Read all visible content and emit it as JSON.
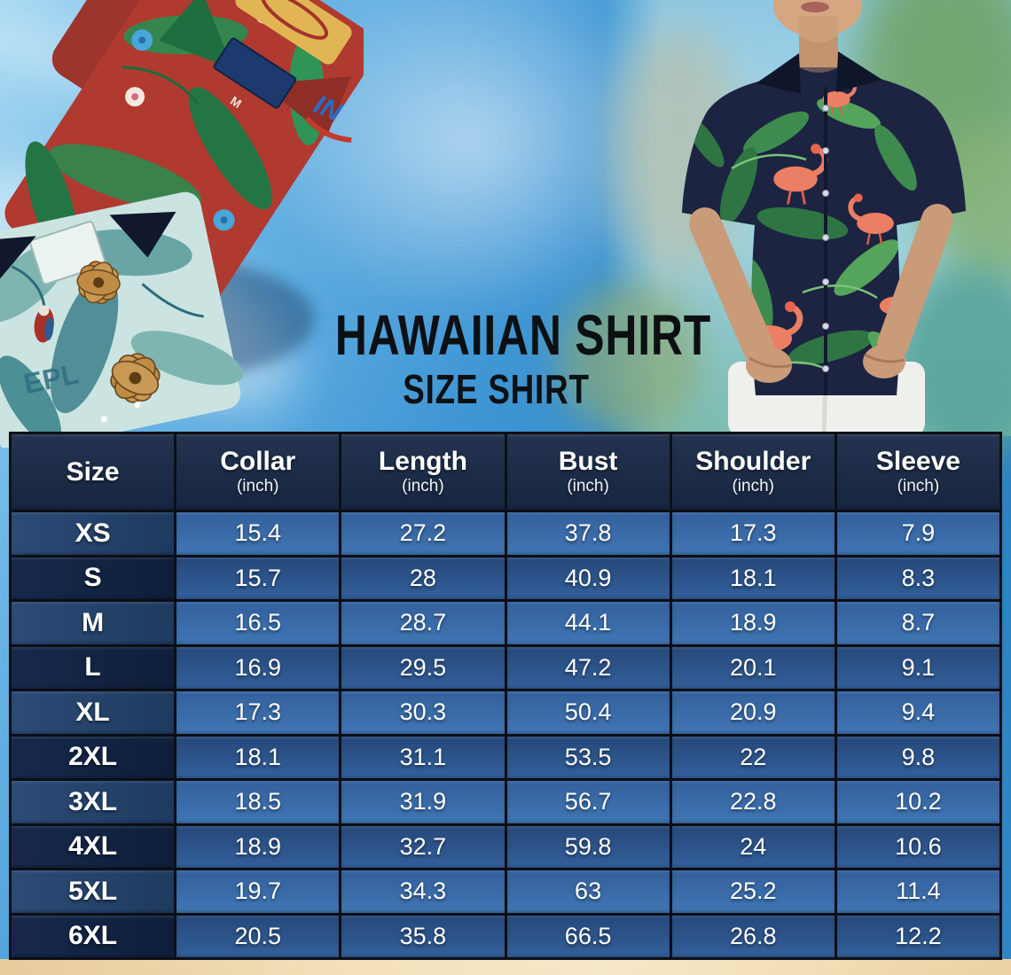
{
  "title": {
    "main": "HAWAIIAN SHIRT",
    "sub": "SIZE SHIRT"
  },
  "photos": {
    "left": "two-folded-hawaiian-shirts",
    "right": "man-wearing-navy-flamingo-hawaiian-shirt",
    "red_shirt_tag_size": "M",
    "teal_shirt_print_text": "EPL",
    "red_shirt_sleeve_logo": "IN"
  },
  "size_chart": {
    "columns": [
      {
        "key": "size",
        "label": "Size",
        "unit": ""
      },
      {
        "key": "collar",
        "label": "Collar",
        "unit": "(inch)"
      },
      {
        "key": "length",
        "label": "Length",
        "unit": "(inch)"
      },
      {
        "key": "bust",
        "label": "Bust",
        "unit": "(inch)"
      },
      {
        "key": "shoulder",
        "label": "Shoulder",
        "unit": "(inch)"
      },
      {
        "key": "sleeve",
        "label": "Sleeve",
        "unit": "(inch)"
      }
    ],
    "rows": [
      {
        "size": "XS",
        "values": [
          15.4,
          27.2,
          37.8,
          17.3,
          7.9
        ]
      },
      {
        "size": "S",
        "values": [
          15.7,
          28,
          40.9,
          18.1,
          8.3
        ]
      },
      {
        "size": "M",
        "values": [
          16.5,
          28.7,
          44.1,
          18.9,
          8.7
        ]
      },
      {
        "size": "L",
        "values": [
          16.9,
          29.5,
          47.2,
          20.1,
          9.1
        ]
      },
      {
        "size": "XL",
        "values": [
          17.3,
          30.3,
          50.4,
          20.9,
          9.4
        ]
      },
      {
        "size": "2XL",
        "values": [
          18.1,
          31.1,
          53.5,
          22,
          9.8
        ]
      },
      {
        "size": "3XL",
        "values": [
          18.5,
          31.9,
          56.7,
          22.8,
          10.2
        ]
      },
      {
        "size": "4XL",
        "values": [
          18.9,
          32.7,
          59.8,
          24,
          10.6
        ]
      },
      {
        "size": "5XL",
        "values": [
          19.7,
          34.3,
          63,
          25.2,
          11.4
        ]
      },
      {
        "size": "6XL",
        "values": [
          20.5,
          35.8,
          66.5,
          26.8,
          12.2
        ]
      }
    ]
  },
  "chart_data": {
    "type": "table",
    "title": "HAWAIIAN SHIRT — SIZE SHIRT",
    "columns": [
      "Size",
      "Collar (inch)",
      "Length (inch)",
      "Bust (inch)",
      "Shoulder (inch)",
      "Sleeve (inch)"
    ],
    "rows": [
      [
        "XS",
        15.4,
        27.2,
        37.8,
        17.3,
        7.9
      ],
      [
        "S",
        15.7,
        28,
        40.9,
        18.1,
        8.3
      ],
      [
        "M",
        16.5,
        28.7,
        44.1,
        18.9,
        8.7
      ],
      [
        "L",
        16.9,
        29.5,
        47.2,
        20.1,
        9.1
      ],
      [
        "XL",
        17.3,
        30.3,
        50.4,
        20.9,
        9.4
      ],
      [
        "2XL",
        18.1,
        31.1,
        53.5,
        22,
        9.8
      ],
      [
        "3XL",
        18.5,
        31.9,
        56.7,
        22.8,
        10.2
      ],
      [
        "4XL",
        18.9,
        32.7,
        59.8,
        24,
        10.6
      ],
      [
        "5XL",
        19.7,
        34.3,
        63,
        25.2,
        11.4
      ],
      [
        "6XL",
        20.5,
        35.8,
        66.5,
        26.8,
        12.2
      ]
    ]
  },
  "colors": {
    "header_navy": "#1b2a45",
    "row_blue_light": "#3d6fae",
    "row_blue_dark": "#2e5690",
    "size_cell_light": "#24436d",
    "size_cell_dark": "#0f2038",
    "table_border": "#0a0e16",
    "sky_blue": "#2e86c8",
    "sand": "#f0d9ae",
    "title_ink": "#0d1013"
  }
}
